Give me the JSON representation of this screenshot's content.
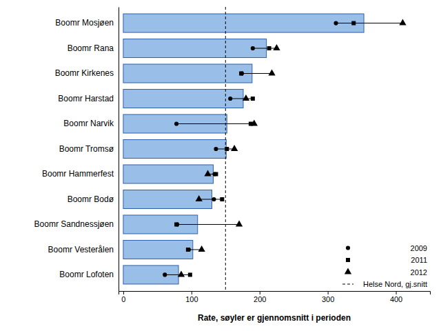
{
  "chart_data": {
    "type": "bar",
    "orientation": "horizontal",
    "x_label": "Rate, søyler er gjennomsnitt i perioden",
    "categories": [
      "Boomr Mosjøen",
      "Boomr Rana",
      "Boomr Kirkenes",
      "Boomr Harstad",
      "Boomr Narvik",
      "Boomr Tromsø",
      "Boomr Hammerfest",
      "Boomr Bodø",
      "Boomr Sandnessjøen",
      "Boomr Vesterålen",
      "Boomr Lofoten"
    ],
    "values": [
      353,
      210,
      189,
      176,
      152,
      151,
      132,
      130,
      109,
      102,
      81
    ],
    "color": "#99bfe8",
    "series": [
      {
        "name": "2009",
        "type": "scatter",
        "marker": "circle",
        "color": "#000000",
        "values": [
          312,
          190,
          174,
          157,
          78,
          136,
          134,
          133,
          79,
          96,
          61
        ]
      },
      {
        "name": "2011",
        "type": "scatter",
        "marker": "square",
        "color": "#000000",
        "values": [
          338,
          214,
          173,
          190,
          187,
          152,
          136,
          145,
          78,
          95,
          98
        ]
      },
      {
        "name": "2012",
        "type": "scatter",
        "marker": "triangle",
        "color": "#000000",
        "values": [
          410,
          225,
          218,
          180,
          192,
          163,
          124,
          111,
          170,
          115,
          85
        ]
      }
    ],
    "reference_lines": [
      {
        "name": "Helse Nord, gj.snitt",
        "value": 150,
        "line_style": "dashed",
        "color": "#000000"
      }
    ],
    "xlim": [
      -7,
      450
    ],
    "xticks": [
      0,
      100,
      200,
      300,
      400
    ],
    "legend": "lower right",
    "grid": false
  }
}
